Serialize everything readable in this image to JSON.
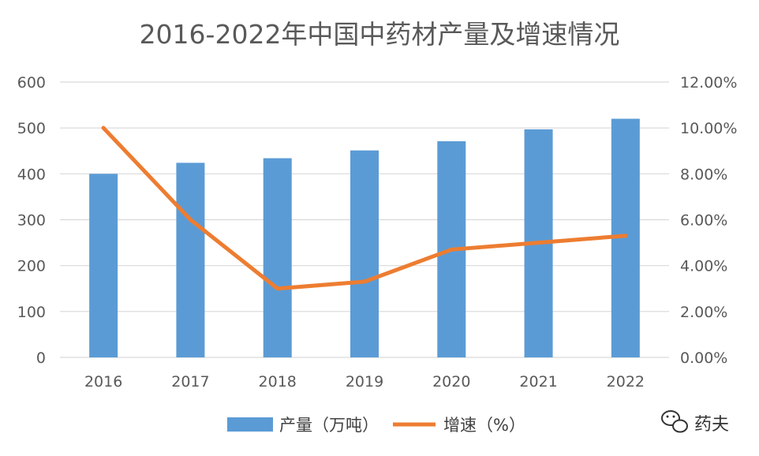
{
  "chart_data": {
    "type": "bar",
    "title": "2016-2022年中国中药材产量及增速情况",
    "categories": [
      "2016",
      "2017",
      "2018",
      "2019",
      "2020",
      "2021",
      "2022"
    ],
    "series": [
      {
        "name": "产量（万吨）",
        "type": "bar",
        "axis": "left",
        "values": [
          400,
          424,
          434,
          451,
          471,
          497,
          520
        ],
        "color": "#5b9bd5"
      },
      {
        "name": "增速（%）",
        "type": "line",
        "axis": "right",
        "values": [
          10.0,
          6.0,
          3.0,
          3.3,
          4.7,
          5.0,
          5.3
        ],
        "color": "#ed7d31"
      }
    ],
    "ylim_left": [
      0,
      600
    ],
    "yticks_left": [
      "0",
      "100",
      "200",
      "300",
      "400",
      "500",
      "600"
    ],
    "ylim_right": [
      0,
      12
    ],
    "yticks_right": [
      "0.00%",
      "2.00%",
      "4.00%",
      "6.00%",
      "8.00%",
      "10.00%",
      "12.00%"
    ],
    "grid": true,
    "legend_position": "bottom"
  },
  "watermark": {
    "text": "药夫",
    "icon": "wechat-icon"
  }
}
